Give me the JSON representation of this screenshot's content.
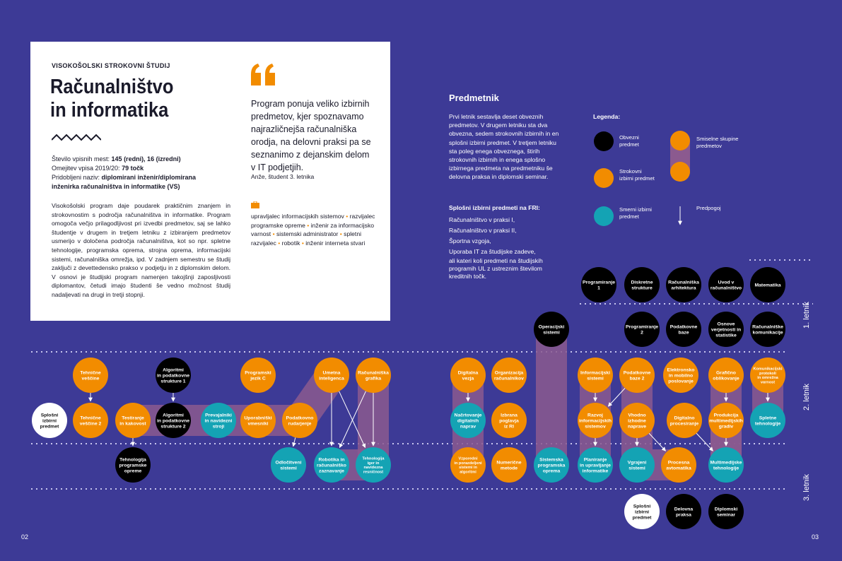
{
  "left_card": {
    "label_top": "VISOKOŠOLSKI STROKOVNI ŠTUDIJ",
    "title_line1": "Računalništvo",
    "title_line2": "in informatika",
    "info": [
      {
        "label": "Število vpisnih mest: ",
        "value": "145 (redni), 16 (izredni)"
      },
      {
        "label": "Omejitev vpisa 2019/20: ",
        "value": "79 točk"
      },
      {
        "label": "Pridobljeni naziv: ",
        "value": "diplomirani inženir/diplomirana"
      },
      {
        "label": "",
        "value": "inženirka računalništva in informatike (VS)"
      }
    ],
    "description": "Visokošolski program daje poudarek praktičnim znanjem in strokovnostim s področja računalništva in informatike. Program omogoča večjo prilagodljivost pri izvedbi predmetov, saj se lahko študentje v drugem in tretjem letniku z izbiranjem predmetov usmerijo v določena področja računalništva, kot so npr. spletne tehnologije, programska oprema, strojna oprema, informacijski sistemi, računalniška omrežja, ipd. V zadnjem semestru se študij zaključi z devettedensko prakso v podjetju in z diplomskim delom. V osnovi je študijski program namenjen takojšnji zaposljivosti diplomantov, četudi imajo študenti še vedno možnost študij nadaljevati na drugi in tretji stopnji.",
    "quote": "Program ponuja veliko izbirnih predmetov, kjer spoznavamo najrazličnejša računalniška orodja, na delovni praksi pa se seznanimo z dejanskim delom v IT podjetjih.",
    "quote_author": "Anže, študent 3. letnika",
    "jobs": [
      "upravljalec informacijskih sistemov",
      "razvijalec programske opreme",
      "inženir za informacijsko varnost",
      "sistemski administrator",
      "spletni razvijalec",
      "robotik",
      "inženir interneta stvari"
    ]
  },
  "predmetnik": {
    "title": "Predmetnik",
    "text": "Prvi letnik sestavlja deset obveznih predmetov. V drugem letniku sta dva obvezna, sedem strokovnih izbirnih in en splošni izbirni predmet. V tretjem letniku sta poleg enega obveznega, štirih strokovnih izbirnih in enega splošno izbirnega predmeta na predmetniku še delovna praksa in diplomski seminar.",
    "general_title": "Splošni izbirni predmeti na FRI:",
    "general_list": [
      "Računalništvo v praksi I,",
      "Računalništvo v praksi II,",
      "Športna vzgoja,",
      "Uporaba IT za študijske zadeve,",
      "ali kateri koli predmeti na študijskih programih UL z ustreznim številom kreditnih točk."
    ]
  },
  "legend": {
    "title": "Legenda:",
    "obvezni": "Obvezni predmet",
    "strokovni": "Strokovni izbirni predmet",
    "smerni": "Smerni izbirni predmet",
    "skupine": "Smiselne skupine predmetov",
    "predpogoj": "Predpogoj"
  },
  "years": [
    "1. letnik",
    "2. letnik",
    "3. letnik"
  ],
  "pages": {
    "left": "02",
    "right": "03"
  },
  "colors": {
    "background": "#3d3a96",
    "obvezni": "#000000",
    "strokovni": "#f28c00",
    "smerni": "#14a3b4",
    "splosni": "#ffffff",
    "group": "#8b5a8f"
  },
  "nodes": [
    {
      "id": "n1",
      "type": "obvezni",
      "lines": [
        "Programiranje",
        "1"
      ]
    },
    {
      "id": "n2",
      "type": "obvezni",
      "lines": [
        "Diskretne",
        "strukture"
      ]
    },
    {
      "id": "n3",
      "type": "obvezni",
      "lines": [
        "Računalniška",
        "arhitektura"
      ]
    },
    {
      "id": "n4",
      "type": "obvezni",
      "lines": [
        "Uvod v",
        "računalništvo"
      ]
    },
    {
      "id": "n5",
      "type": "obvezni",
      "lines": [
        "Matematika"
      ]
    },
    {
      "id": "n6",
      "type": "obvezni",
      "lines": [
        "Operacijski",
        "sistemi"
      ]
    },
    {
      "id": "n7",
      "type": "obvezni",
      "lines": [
        "Programiranje",
        "2"
      ]
    },
    {
      "id": "n8",
      "type": "obvezni",
      "lines": [
        "Podatkovne",
        "baze"
      ]
    },
    {
      "id": "n9",
      "type": "obvezni",
      "lines": [
        "Osnove",
        "verjetnosti in",
        "statistike"
      ]
    },
    {
      "id": "n10",
      "type": "obvezni",
      "lines": [
        "Računalniške",
        "komunikacije"
      ]
    },
    {
      "id": "a1",
      "type": "strokovni",
      "lines": [
        "Tehnične",
        "veščine"
      ]
    },
    {
      "id": "a2",
      "type": "obvezni",
      "lines": [
        "Algoritmi",
        "in podatkovne",
        "strukture 1"
      ]
    },
    {
      "id": "a3",
      "type": "strokovni",
      "lines": [
        "Programski",
        "jezik C"
      ]
    },
    {
      "id": "a4",
      "type": "strokovni",
      "lines": [
        "Umetna",
        "inteligenca"
      ]
    },
    {
      "id": "a5",
      "type": "strokovni",
      "lines": [
        "Računalniška",
        "grafika"
      ]
    },
    {
      "id": "a6",
      "type": "strokovni",
      "lines": [
        "Digitalna",
        "vezja"
      ]
    },
    {
      "id": "a7",
      "type": "strokovni",
      "lines": [
        "Organizacija",
        "računalnikov"
      ]
    },
    {
      "id": "a8",
      "type": "strokovni",
      "lines": [
        "Informacijski",
        "sistemi"
      ]
    },
    {
      "id": "a9",
      "type": "strokovni",
      "lines": [
        "Podatkovne",
        "baze 2"
      ]
    },
    {
      "id": "a10",
      "type": "strokovni",
      "lines": [
        "Elektronsko",
        "in mobilno",
        "poslovanje"
      ]
    },
    {
      "id": "a11",
      "type": "strokovni",
      "lines": [
        "Grafično",
        "oblikovanje"
      ]
    },
    {
      "id": "a12",
      "type": "strokovni",
      "lines": [
        "Komunikacijski",
        "protokoli",
        "in omrežna",
        "varnost"
      ]
    },
    {
      "id": "b0",
      "type": "splosni",
      "lines": [
        "Splošni",
        "izbirni",
        "predmet"
      ]
    },
    {
      "id": "b1",
      "type": "strokovni",
      "lines": [
        "Tehnične",
        "veščine 2"
      ]
    },
    {
      "id": "b2",
      "type": "strokovni",
      "lines": [
        "Testiranje",
        "in kakovost"
      ]
    },
    {
      "id": "b3",
      "type": "obvezni",
      "lines": [
        "Algoritmi",
        "in podatkovne",
        "strukture 2"
      ]
    },
    {
      "id": "b4",
      "type": "smerni",
      "lines": [
        "Prevajalniki",
        "in navidezni",
        "stroji"
      ]
    },
    {
      "id": "b5",
      "type": "strokovni",
      "lines": [
        "Uporabniški",
        "vmesniki"
      ]
    },
    {
      "id": "b6",
      "type": "strokovni",
      "lines": [
        "Podatkovno",
        "rudarjenje"
      ]
    },
    {
      "id": "b7",
      "type": "smerni",
      "lines": [
        "Načrtovanje",
        "digitalnih",
        "naprav"
      ]
    },
    {
      "id": "b8",
      "type": "strokovni",
      "lines": [
        "Izbrana",
        "poglavja",
        "iz RI"
      ]
    },
    {
      "id": "b9",
      "type": "strokovni",
      "lines": [
        "Razvoj",
        "informacijskih",
        "sistemov"
      ]
    },
    {
      "id": "b10",
      "type": "strokovni",
      "lines": [
        "Vhodno",
        "izhodne",
        "naprave"
      ]
    },
    {
      "id": "b11",
      "type": "strokovni",
      "lines": [
        "Digitalno",
        "procesiranje"
      ]
    },
    {
      "id": "b12",
      "type": "strokovni",
      "lines": [
        "Produkcija",
        "multimedijskih",
        "gradiv"
      ]
    },
    {
      "id": "b13",
      "type": "smerni",
      "lines": [
        "Spletne",
        "tehnologije"
      ]
    },
    {
      "id": "c1",
      "type": "obvezni",
      "lines": [
        "Tehnologija",
        "programske",
        "opreme"
      ]
    },
    {
      "id": "c2",
      "type": "smerni",
      "lines": [
        "Odločitveni",
        "sistemi"
      ]
    },
    {
      "id": "c3",
      "type": "smerni",
      "lines": [
        "Robotika in",
        "računalniško",
        "zaznavanje"
      ]
    },
    {
      "id": "c4",
      "type": "smerni",
      "lines": [
        "Tehnologija",
        "iger in",
        "navidezna",
        "resničnost"
      ]
    },
    {
      "id": "c5",
      "type": "strokovni",
      "lines": [
        "Vzporedni",
        "in porazdeljeni",
        "sistemi in",
        "algoritmi"
      ]
    },
    {
      "id": "c6",
      "type": "strokovni",
      "lines": [
        "Numerične",
        "metode"
      ]
    },
    {
      "id": "c7",
      "type": "smerni",
      "lines": [
        "Sistemska",
        "programska",
        "oprema"
      ]
    },
    {
      "id": "c8",
      "type": "smerni",
      "lines": [
        "Planiranje",
        "in upravljanje",
        "informatike"
      ]
    },
    {
      "id": "c9",
      "type": "smerni",
      "lines": [
        "Vgrajeni",
        "sistemi"
      ]
    },
    {
      "id": "c10",
      "type": "strokovni",
      "lines": [
        "Procesna",
        "avtomatika"
      ]
    },
    {
      "id": "c11",
      "type": "smerni",
      "lines": [
        "Multimedijske",
        "tehnologije"
      ]
    },
    {
      "id": "d1",
      "type": "splosni",
      "lines": [
        "Splošni",
        "izbirni",
        "predmet"
      ]
    },
    {
      "id": "d2",
      "type": "obvezni",
      "lines": [
        "Delovna",
        "praksa"
      ]
    },
    {
      "id": "d3",
      "type": "obvezni",
      "lines": [
        "Diplomski",
        "seminar"
      ]
    }
  ]
}
